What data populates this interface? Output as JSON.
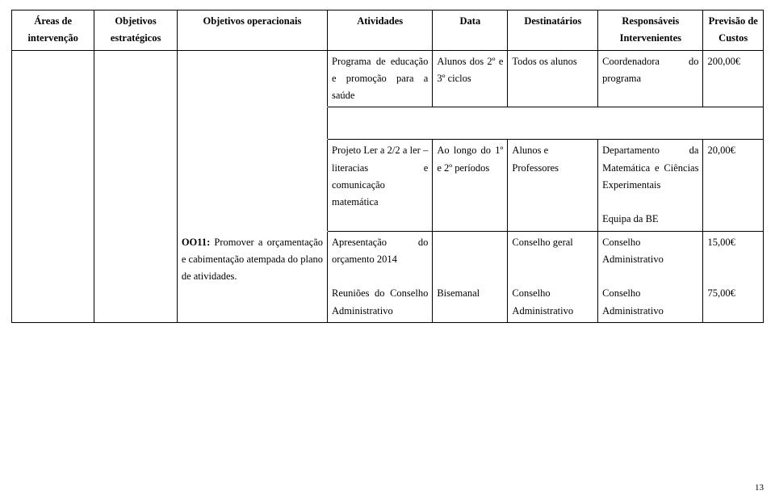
{
  "header": {
    "h1": "Áreas de intervenção",
    "h2": "Objetivos estratégicos",
    "h3": "Objetivos operacionais",
    "h4": "Atividades",
    "h5": "Data",
    "h6": "Destinatários",
    "h7": "Responsáveis Intervenientes",
    "h8": "Previsão de Custos"
  },
  "row1": {
    "atividades": "Programa de educação e promoção para a saúde",
    "data": "Alunos dos 2º e 3º ciclos",
    "destinatarios": "Todos os alunos",
    "responsaveis": "Coordenadora do programa",
    "custo": "200,00€"
  },
  "row2": {
    "atividades": "Projeto Ler a 2/2 a ler – literacias e comunicação matemática",
    "data": "Ao longo do 1º e 2º períodos",
    "destinatarios": "Alunos e Professores",
    "resp_line1": "Departamento da Matemática e Ciências Experimentais",
    "resp_line2": "Equipa da BE",
    "custo": "20,00€"
  },
  "row3": {
    "operacionais": "OO11: Promover a orçamentação e cabimentação atempada do plano de atividades.",
    "atividades_a": "Apresentação do orçamento 2014",
    "dest_a": "Conselho geral",
    "resp_a": "Conselho Administrativo",
    "custo_a": "15,00€",
    "atividades_b": "Reuniões do Conselho Administrativo",
    "data_b": "Bisemanal",
    "dest_b": "Conselho Administrativo",
    "resp_b": "Conselho Administrativo",
    "custo_b": "75,00€"
  },
  "page_number": "13"
}
